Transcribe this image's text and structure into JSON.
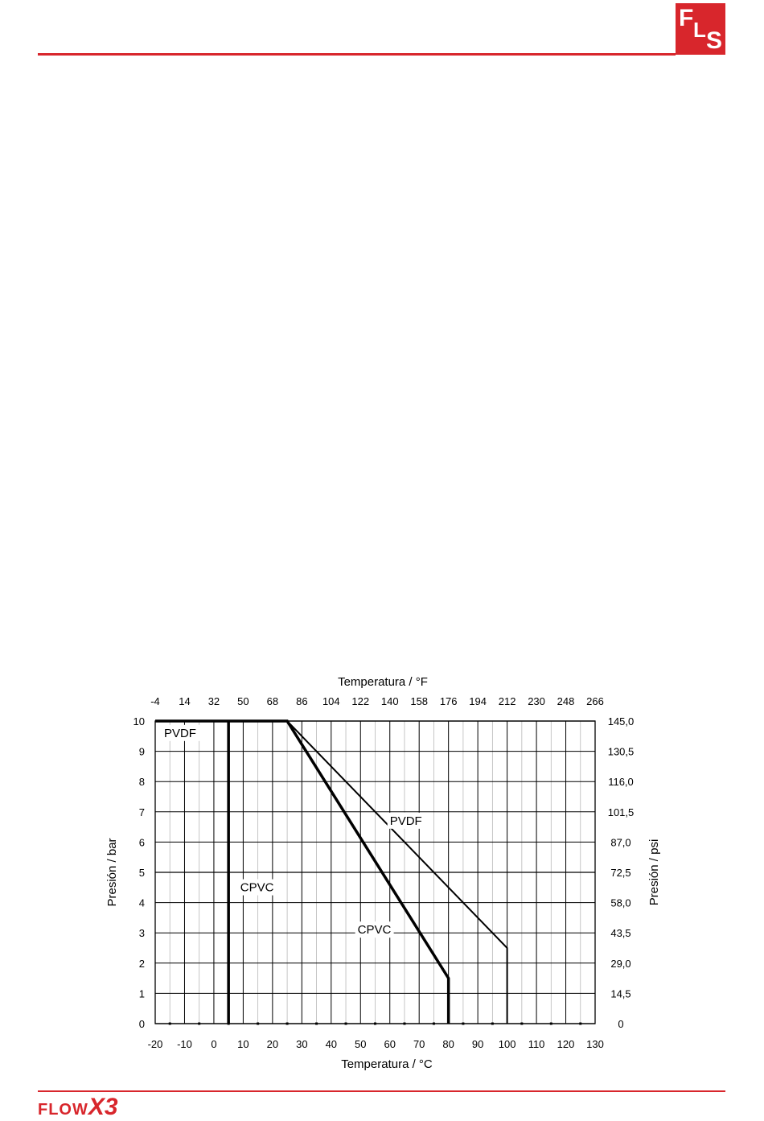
{
  "header": {
    "logo_text": "FLS",
    "logo_letters": [
      "F",
      "L",
      "S"
    ]
  },
  "footer": {
    "logo_text_flow": "FLOW",
    "logo_text_x3": "X3"
  },
  "colors": {
    "brand_red": "#d8262c",
    "grid": "#000000",
    "series": "#000000"
  },
  "chart_data": {
    "type": "line",
    "top_axis_title": "Temperatura / °F",
    "xlabel": "Temperatura / °C",
    "ylabel_left": "Presión / bar",
    "ylabel_right": "Presión / psi",
    "xlim": [
      -20,
      130
    ],
    "ylim": [
      0,
      10
    ],
    "x_ticks": [
      "-20",
      "-10",
      "0",
      "10",
      "20",
      "30",
      "40",
      "50",
      "60",
      "70",
      "80",
      "90",
      "100",
      "110",
      "120",
      "130"
    ],
    "top_ticks": [
      "-4",
      "14",
      "32",
      "50",
      "68",
      "86",
      "104",
      "122",
      "140",
      "158",
      "176",
      "194",
      "212",
      "230",
      "248",
      "266"
    ],
    "y_ticks_left": [
      "0",
      "1",
      "2",
      "3",
      "4",
      "5",
      "6",
      "7",
      "8",
      "9",
      "10"
    ],
    "y_ticks_right": [
      "0",
      "14,5",
      "29,0",
      "43,5",
      "58,0",
      "72,5",
      "87,0",
      "101,5",
      "116,0",
      "130,5",
      "145,0"
    ],
    "grid": true,
    "series": [
      {
        "name": "PVDF",
        "stroke": "thin",
        "x": [
          -20,
          25,
          100,
          100
        ],
        "y": [
          10,
          10,
          2.5,
          0
        ]
      },
      {
        "name": "CPVC",
        "stroke": "thick",
        "x": [
          5,
          5
        ],
        "y": [
          0,
          10
        ]
      },
      {
        "name": "CPVC",
        "stroke": "thick",
        "x": [
          -20,
          25,
          80,
          80
        ],
        "y": [
          10,
          10,
          1.5,
          0
        ]
      }
    ],
    "annotations": [
      {
        "text": "PVDF",
        "x": -17,
        "y": 9.5
      },
      {
        "text": "PVDF",
        "x": 60,
        "y": 6.6
      },
      {
        "text": "CPVC",
        "x": 9,
        "y": 4.4
      },
      {
        "text": "CPVC",
        "x": 49,
        "y": 3.0
      }
    ]
  }
}
